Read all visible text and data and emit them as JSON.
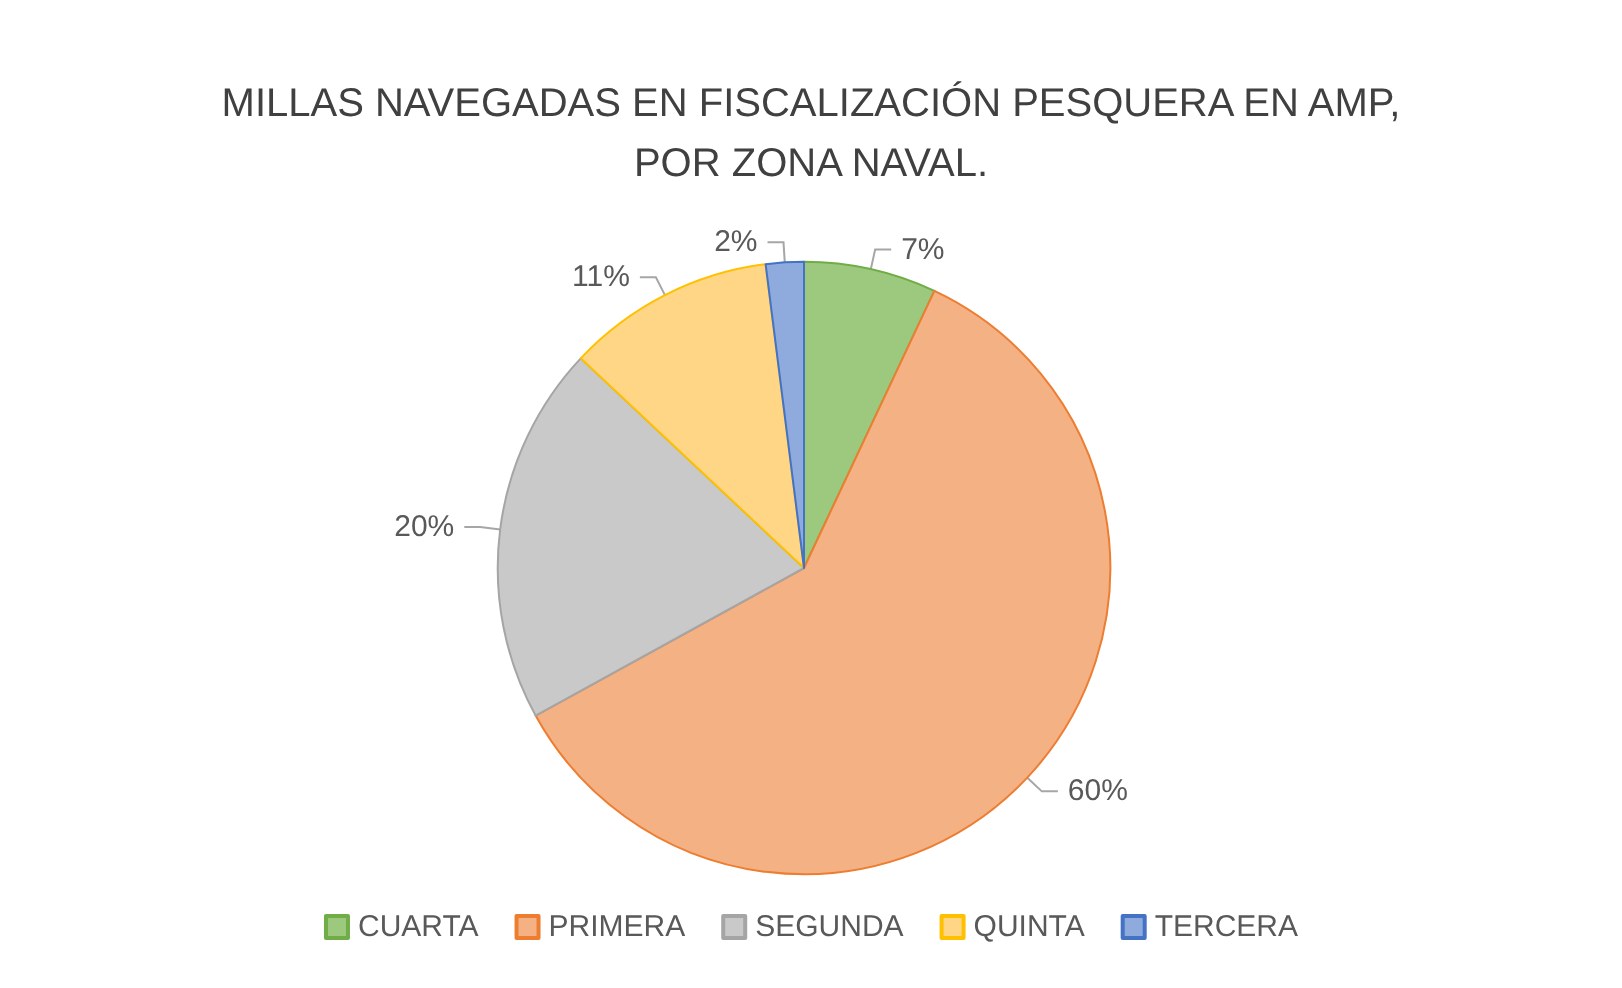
{
  "chart_data": {
    "type": "pie",
    "title": "MILLAS NAVEGADAS EN FISCALIZACIÓN PESQUERA EN AMP,\nPOR ZONA NAVAL.",
    "categories": [
      "CUARTA",
      "PRIMERA",
      "SEGUNDA",
      "QUINTA",
      "TERCERA"
    ],
    "values": [
      7,
      60,
      20,
      11,
      2
    ],
    "value_labels": [
      "7%",
      "60%",
      "20%",
      "11%",
      "2%"
    ],
    "colors": [
      "#9dc97f",
      "#f4b183",
      "#c9c9c9",
      "#ffd685",
      "#8faadc"
    ],
    "legend": "bottom"
  }
}
